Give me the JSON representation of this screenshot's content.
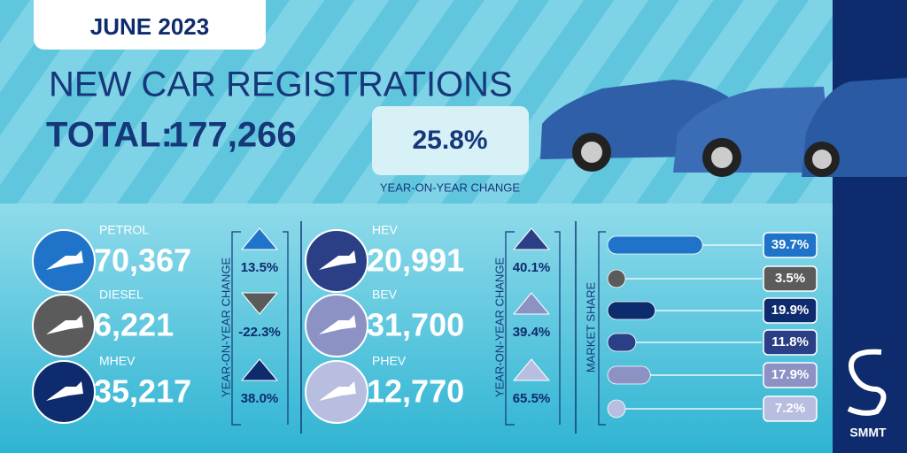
{
  "header": {
    "date": "JUNE 2023",
    "title": "NEW CAR REGISTRATIONS",
    "total_label": "TOTAL:",
    "total": "177,266",
    "yoy": "25.8%",
    "yoy_label": "YEAR-ON-YEAR CHANGE"
  },
  "groups": [
    {
      "change_label": "YEAR-ON-YEAR CHANGE"
    },
    {
      "change_label": "YEAR-ON-YEAR CHANGE"
    }
  ],
  "market_share_label": "MARKET SHARE",
  "fuels": [
    {
      "name": "PETROL",
      "count": "70,367",
      "change": "13.5%",
      "direction": "up",
      "color": "#1f74c9",
      "share": 39.7,
      "share_label": "39.7%"
    },
    {
      "name": "DIESEL",
      "count": "6,221",
      "change": "-22.3%",
      "direction": "down",
      "color": "#5b5b5b",
      "share": 3.5,
      "share_label": "3.5%"
    },
    {
      "name": "MHEV",
      "count": "35,217",
      "change": "38.0%",
      "direction": "up",
      "color": "#0e2b6e",
      "share": 19.9,
      "share_label": "19.9%"
    },
    {
      "name": "HEV",
      "count": "20,991",
      "change": "40.1%",
      "direction": "up",
      "color": "#2b3f86",
      "share": 11.8,
      "share_label": "11.8%"
    },
    {
      "name": "BEV",
      "count": "31,700",
      "change": "39.4%",
      "direction": "up",
      "color": "#8d92c4",
      "share": 17.9,
      "share_label": "17.9%"
    },
    {
      "name": "PHEV",
      "count": "12,770",
      "change": "65.5%",
      "direction": "up",
      "color": "#b8bee0",
      "share": 7.2,
      "share_label": "7.2%"
    }
  ],
  "brand": "SMMT"
}
